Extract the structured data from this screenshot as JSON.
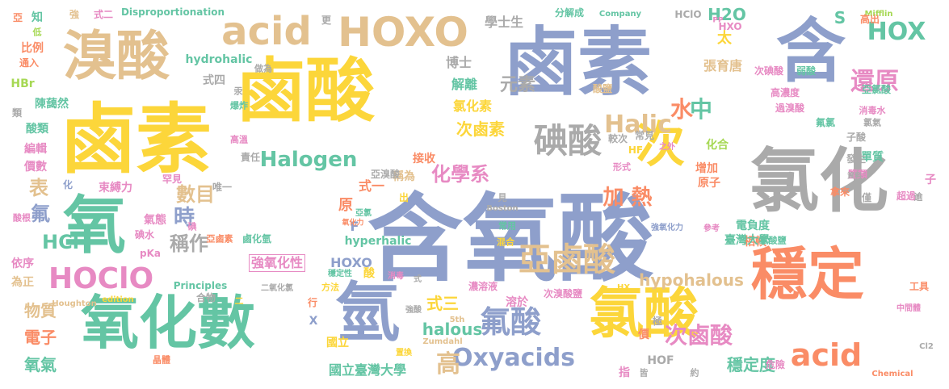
{
  "words": [
    {
      "text": "含氧酸",
      "color": "blue"
    },
    {
      "text": "鹵素",
      "color": "yellow"
    },
    {
      "text": "鹵酸",
      "color": "yellow"
    },
    {
      "text": "鹵素",
      "color": "blue"
    },
    {
      "text": "含",
      "color": "blue"
    },
    {
      "text": "溴酸",
      "color": "tan"
    },
    {
      "text": "acid",
      "color": "tan"
    },
    {
      "text": "HOXO",
      "color": "tan"
    },
    {
      "text": "氯化",
      "color": "gray"
    },
    {
      "text": "氧",
      "color": "green"
    },
    {
      "text": "氧化數",
      "color": "green"
    },
    {
      "text": "氫",
      "color": "blue"
    },
    {
      "text": "氯酸",
      "color": "yellow"
    },
    {
      "text": "穩定",
      "color": "orange"
    },
    {
      "text": "次",
      "color": "yellow"
    },
    {
      "text": "碘酸",
      "color": "gray"
    },
    {
      "text": "亞鹵酸",
      "color": "tan"
    },
    {
      "text": "氟酸",
      "color": "blue"
    },
    {
      "text": "acid",
      "color": "orange"
    },
    {
      "text": "HOClO",
      "color": "pink"
    },
    {
      "text": "還原",
      "color": "pink"
    },
    {
      "text": "HOX",
      "color": "green"
    },
    {
      "text": "水",
      "color": "orange"
    },
    {
      "text": "中",
      "color": "green"
    },
    {
      "text": "Halic",
      "color": "tan"
    },
    {
      "text": "Halogen",
      "color": "green"
    },
    {
      "text": "化學系",
      "color": "pink"
    },
    {
      "text": "次鹵酸",
      "color": "pink"
    },
    {
      "text": "Oxyacids",
      "color": "blue"
    },
    {
      "text": "高",
      "color": "tan"
    },
    {
      "text": "加 熱",
      "color": "orange"
    },
    {
      "text": "數目",
      "color": "tan"
    },
    {
      "text": "時",
      "color": "blue"
    },
    {
      "text": "稱作",
      "color": "gray"
    },
    {
      "text": "HCl",
      "color": "green"
    },
    {
      "text": "表",
      "color": "tan"
    },
    {
      "text": "氟",
      "color": "blue"
    },
    {
      "text": "式三",
      "color": "yellow"
    },
    {
      "text": "halous",
      "color": "green"
    },
    {
      "text": "hypohalous",
      "color": "tan"
    },
    {
      "text": "穩定度",
      "color": "green"
    },
    {
      "text": "物質",
      "color": "tan"
    },
    {
      "text": "電子",
      "color": "orange"
    },
    {
      "text": "氧氣",
      "color": "green"
    },
    {
      "text": "國立臺灣大學",
      "color": "green"
    },
    {
      "text": "HOXO",
      "color": "blue"
    },
    {
      "text": "強氧化性",
      "color": "pink"
    },
    {
      "text": "元素",
      "color": "gray"
    },
    {
      "text": "氯化素",
      "color": "yellow"
    },
    {
      "text": "次鹵素",
      "color": "yellow"
    },
    {
      "text": "解離",
      "color": "green"
    },
    {
      "text": "博士",
      "color": "gray"
    },
    {
      "text": "學士生",
      "color": "gray"
    },
    {
      "text": "張育唐",
      "color": "tan"
    },
    {
      "text": "H2O",
      "color": "green"
    },
    {
      "text": "S",
      "color": "green"
    },
    {
      "text": "太",
      "color": "yellow"
    },
    {
      "text": "hydrohalic",
      "color": "green"
    },
    {
      "text": "式四",
      "color": "gray"
    },
    {
      "text": "接收",
      "color": "orange"
    },
    {
      "text": "式一",
      "color": "orange"
    },
    {
      "text": "束縛力",
      "color": "pink"
    },
    {
      "text": "比例",
      "color": "orange"
    },
    {
      "text": "陳藹然",
      "color": "green"
    },
    {
      "text": "酸類",
      "color": "green"
    },
    {
      "text": "電負度",
      "color": "green"
    },
    {
      "text": "相較",
      "color": "orange"
    },
    {
      "text": "臺灣大學",
      "color": "green"
    },
    {
      "text": "增加",
      "color": "orange"
    },
    {
      "text": "原子",
      "color": "orange"
    },
    {
      "text": "hyperhalic",
      "color": "green"
    },
    {
      "text": "溶於",
      "color": "pink"
    },
    {
      "text": "HBr",
      "color": "lime"
    },
    {
      "text": "依序",
      "color": "pink"
    },
    {
      "text": "為正",
      "color": "tan"
    },
    {
      "text": "HOF",
      "color": "gray"
    },
    {
      "text": "Disproportionation",
      "color": "green"
    },
    {
      "text": "分解成",
      "color": "green"
    },
    {
      "text": "亞氯酸",
      "color": "green"
    },
    {
      "text": "次碘酸",
      "color": "pink"
    },
    {
      "text": "弱酸",
      "color": "green"
    },
    {
      "text": "過溴酸",
      "color": "pink"
    },
    {
      "text": "知",
      "color": "green"
    },
    {
      "text": "亞",
      "color": "orange"
    },
    {
      "text": "強",
      "color": "tan"
    },
    {
      "text": "式二",
      "color": "pink"
    },
    {
      "text": "更",
      "color": "gray"
    },
    {
      "text": "HClO",
      "color": "gray"
    },
    {
      "text": "Company",
      "color": "green"
    },
    {
      "text": "Mifflin",
      "color": "lime"
    },
    {
      "text": "高出",
      "color": "orange"
    },
    {
      "text": "HXO",
      "color": "pink"
    },
    {
      "text": "化合",
      "color": "lime"
    },
    {
      "text": "較次",
      "color": "gray"
    },
    {
      "text": "常見",
      "color": "gray"
    },
    {
      "text": "稱為",
      "color": "tan"
    },
    {
      "text": "原",
      "color": "orange"
    },
    {
      "text": "F",
      "color": "blue"
    },
    {
      "text": "酸",
      "color": "yellow"
    },
    {
      "text": "X",
      "color": "blue"
    },
    {
      "text": "行",
      "color": "orange"
    },
    {
      "text": "國立",
      "color": "yellow"
    },
    {
      "text": "酸鹽",
      "color": "tan"
    },
    {
      "text": "高濃度",
      "color": "pink"
    },
    {
      "text": "Principles",
      "color": "green"
    },
    {
      "text": "edition",
      "color": "yellow"
    },
    {
      "text": "Houghton",
      "color": "tan"
    },
    {
      "text": "Zumdahl",
      "color": "tan"
    },
    {
      "text": "5th",
      "color": "tan"
    },
    {
      "text": "Boston",
      "color": "gray"
    },
    {
      "text": "Chemical",
      "color": "orange"
    },
    {
      "text": "Cl2",
      "color": "gray"
    },
    {
      "text": "HX",
      "color": "yellow"
    },
    {
      "text": "HF",
      "color": "yellow"
    },
    {
      "text": "次溴酸鹽",
      "color": "pink"
    },
    {
      "text": "濃溶液",
      "color": "pink"
    },
    {
      "text": "強氧化力",
      "color": "blue"
    },
    {
      "text": "參考",
      "color": "pink"
    },
    {
      "text": "氟氯",
      "color": "green"
    },
    {
      "text": "子酸",
      "color": "gray"
    },
    {
      "text": "單質",
      "color": "green"
    },
    {
      "text": "發生",
      "color": "gray"
    },
    {
      "text": "鹽類",
      "color": "pink"
    },
    {
      "text": "拿來",
      "color": "orange"
    },
    {
      "text": "超過",
      "color": "pink"
    },
    {
      "text": "工具",
      "color": "orange"
    },
    {
      "text": "中間體",
      "color": "pink"
    },
    {
      "text": "危險",
      "color": "pink"
    },
    {
      "text": "亞溴酸",
      "color": "gray"
    },
    {
      "text": "鹵化氫",
      "color": "green"
    },
    {
      "text": "亞鹵素",
      "color": "orange"
    },
    {
      "text": "碘水",
      "color": "pink"
    },
    {
      "text": "氣態",
      "color": "pink"
    },
    {
      "text": "罕見",
      "color": "pink"
    },
    {
      "text": "唯一",
      "color": "gray"
    },
    {
      "text": "pKa",
      "color": "pink"
    },
    {
      "text": "價數",
      "color": "pink"
    },
    {
      "text": "編輯",
      "color": "pink"
    },
    {
      "text": "類",
      "color": "gray"
    },
    {
      "text": "通入",
      "color": "orange"
    },
    {
      "text": "低",
      "color": "lime"
    },
    {
      "text": "酸根",
      "color": "pink"
    },
    {
      "text": "合物",
      "color": "gray"
    },
    {
      "text": "二氧化氯",
      "color": "gray"
    },
    {
      "text": "方法",
      "color": "yellow"
    },
    {
      "text": "穩定性",
      "color": "green"
    },
    {
      "text": "消毒",
      "color": "pink"
    },
    {
      "text": "強酸",
      "color": "gray"
    },
    {
      "text": "置換",
      "color": "yellow"
    },
    {
      "text": "晶體",
      "color": "orange"
    },
    {
      "text": "指",
      "color": "pink"
    },
    {
      "text": "皆",
      "color": "gray"
    },
    {
      "text": "約",
      "color": "gray"
    },
    {
      "text": "價",
      "color": "orange"
    },
    {
      "text": "極",
      "color": "gray"
    },
    {
      "text": "混合",
      "color": "yellow"
    },
    {
      "text": "常用",
      "color": "green"
    },
    {
      "text": "氯酸鹽",
      "color": "green"
    },
    {
      "text": "形式",
      "color": "pink"
    },
    {
      "text": "高溫",
      "color": "pink"
    },
    {
      "text": "責任",
      "color": "gray"
    },
    {
      "text": "爆炸",
      "color": "green"
    },
    {
      "text": "做為",
      "color": "gray"
    },
    {
      "text": "消毒水",
      "color": "pink"
    },
    {
      "text": "資料",
      "color": "gray"
    },
    {
      "text": "僅",
      "color": "gray"
    },
    {
      "text": "逾",
      "color": "gray"
    },
    {
      "text": "子",
      "color": "pink"
    },
    {
      "text": "之外",
      "color": "pink"
    },
    {
      "text": "見",
      "color": "gray"
    },
    {
      "text": "出",
      "color": "yellow"
    },
    {
      "text": "化",
      "color": "blue"
    },
    {
      "text": "亞氯",
      "color": "green"
    },
    {
      "text": "二",
      "color": "yellow"
    },
    {
      "text": "式",
      "color": "gray"
    },
    {
      "text": "PP",
      "color": "pink"
    },
    {
      "text": "汞",
      "color": "gray"
    },
    {
      "text": "碘",
      "color": "pink"
    },
    {
      "text": "氯氣",
      "color": "gray"
    },
    {
      "text": "氧化力",
      "color": "orange"
    }
  ]
}
